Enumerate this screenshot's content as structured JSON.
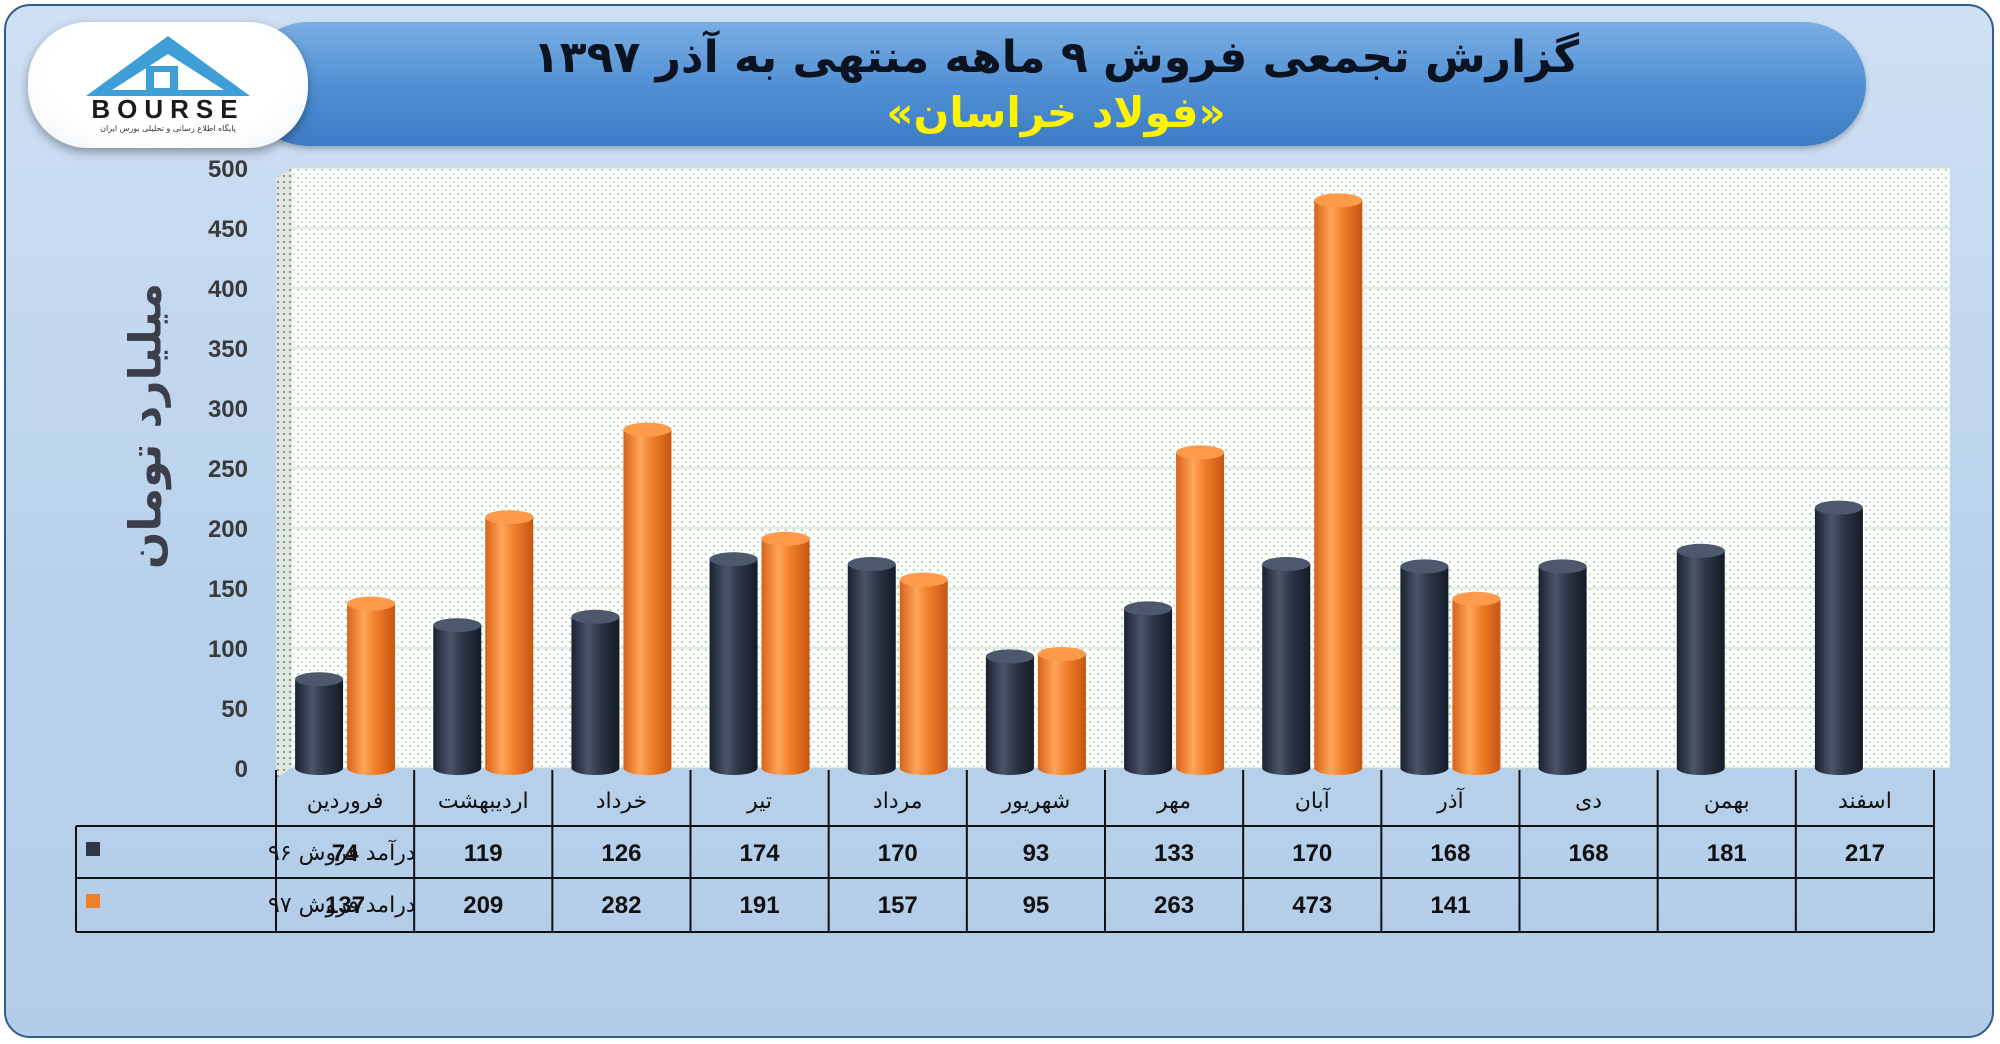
{
  "header": {
    "title": "گزارش تجمعی فروش ۹ ماهه منتهی به آذر ۱۳۹۷",
    "subtitle": "«فولاد خراسان»"
  },
  "logo": {
    "text": "BOURSE",
    "subtitle": "پایگاه اطلاع رسانی و تحلیلی بورس ایران"
  },
  "colors": {
    "series_96": "#2e3748",
    "series_97": "#f07f2a"
  },
  "chart_data": {
    "type": "bar",
    "title": "گزارش تجمعی فروش ۹ ماهه منتهی به آذر ۱۳۹۷",
    "subtitle": "«فولاد خراسان»",
    "ylabel": "میلیارد تومان",
    "xlabel": "",
    "ylim": [
      0,
      500
    ],
    "yticks": [
      0,
      50,
      100,
      150,
      200,
      250,
      300,
      350,
      400,
      450,
      500
    ],
    "grid": true,
    "categories": [
      "فروردین",
      "اردیبهشت",
      "خرداد",
      "تیر",
      "مرداد",
      "شهریور",
      "مهر",
      "آبان",
      "آذر",
      "دی",
      "بهمن",
      "اسفند"
    ],
    "series": [
      {
        "name": "درآمد فروش ۹۶",
        "color": "#2e3748",
        "values": [
          74,
          119,
          126,
          174,
          170,
          93,
          133,
          170,
          168,
          168,
          181,
          217
        ]
      },
      {
        "name": "درامد فروش ۹۷",
        "color": "#f07f2a",
        "values": [
          137,
          209,
          282,
          191,
          157,
          95,
          263,
          473,
          141,
          null,
          null,
          null
        ]
      }
    ],
    "legend": "table-left"
  }
}
